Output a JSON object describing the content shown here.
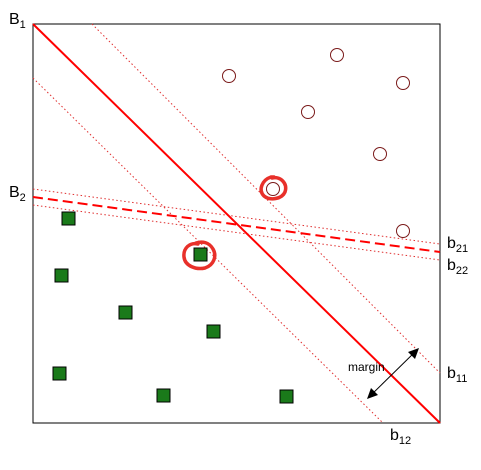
{
  "labels": {
    "B1": {
      "base": "B",
      "sub": "1"
    },
    "B2": {
      "base": "B",
      "sub": "2"
    },
    "b11": {
      "base": "b",
      "sub": "11"
    },
    "b12": {
      "base": "b",
      "sub": "12"
    },
    "b21": {
      "base": "b",
      "sub": "21"
    },
    "b22": {
      "base": "b",
      "sub": "22"
    },
    "margin": "margin"
  },
  "colors": {
    "boundary": "#ff0000",
    "margin_lines": "#e03030",
    "circle_stroke": "#7a1a1a",
    "square_fill": "#1a7a1a",
    "square_stroke": "#000000",
    "highlight": "#e8302a",
    "frame": "#000000"
  }
}
